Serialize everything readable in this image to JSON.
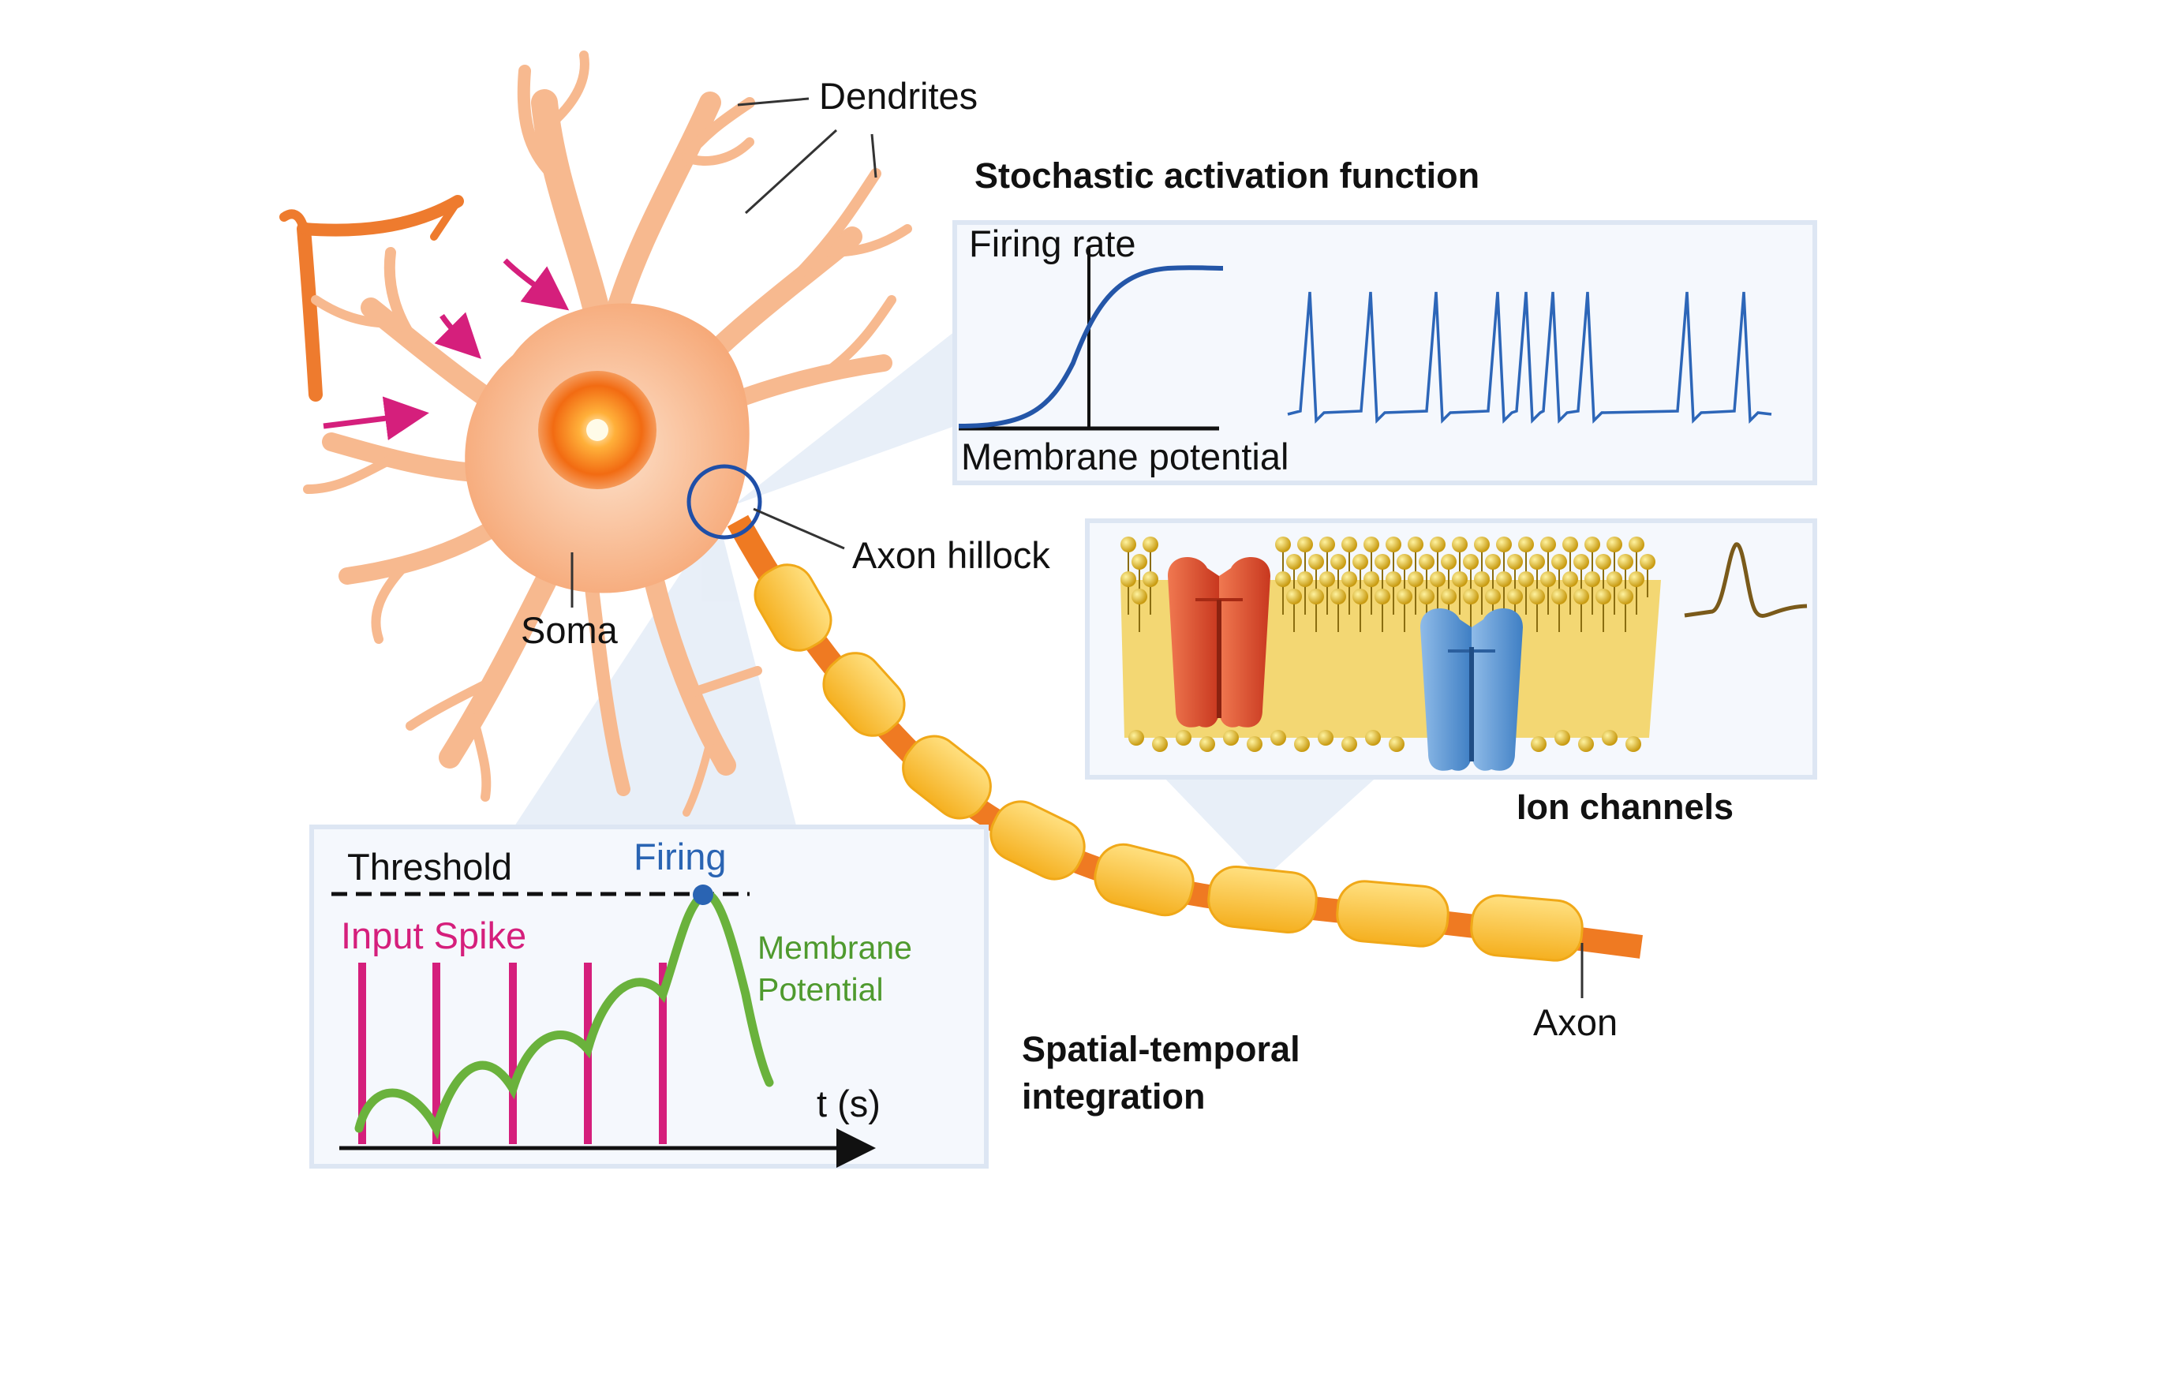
{
  "labels": {
    "dendrites": "Dendrites",
    "soma": "Soma",
    "axon_hillock": "Axon hillock",
    "axon": "Axon"
  },
  "headings": {
    "stochastic": "Stochastic activation function",
    "ion_channels": "Ion channels",
    "spatial_temporal_line1": "Spatial-temporal",
    "spatial_temporal_line2": "integration"
  },
  "activation_panel": {
    "y_label": "Firing rate",
    "x_label": "Membrane potential"
  },
  "integration_panel": {
    "threshold": "Threshold",
    "firing": "Firing",
    "input_spike": "Input Spike",
    "membrane_line1": "Membrane",
    "membrane_line2": "Potential",
    "time_axis": "t (s)"
  },
  "colors": {
    "neuron": "#f7b98f",
    "neuron_dark": "#ee7b2e",
    "myelin": "#ffc83a",
    "axon_core": "#ef7a22",
    "spike_blue": "#2456a8",
    "input_magenta": "#d51f7c",
    "membrane_green": "#6ab23c",
    "firing_blue": "#2a64b3",
    "channel_red": "#e8573a",
    "channel_blue": "#5c97d6",
    "lipid_gold": "#e6c13a",
    "panel_bg": "#f5f8fd"
  }
}
